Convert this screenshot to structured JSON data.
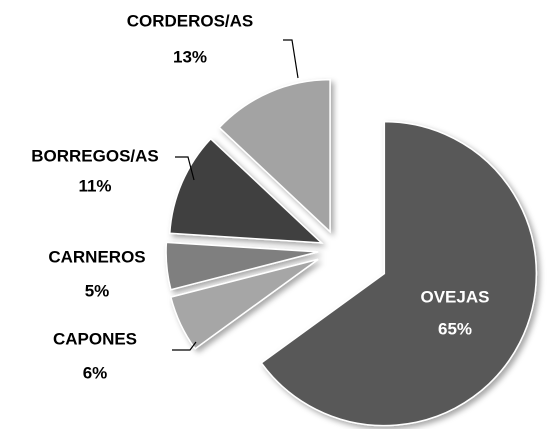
{
  "chart_data": {
    "type": "pie",
    "categories": [
      "OVEJAS",
      "CAPONES",
      "CARNEROS",
      "BORREGOS/AS",
      "CORDEROS/AS"
    ],
    "values": [
      65,
      6,
      5,
      11,
      13
    ],
    "value_labels": [
      "65%",
      "6%",
      "5%",
      "11%",
      "13%"
    ],
    "colors": [
      "#595959",
      "#a6a6a6",
      "#7f7f7f",
      "#404040",
      "#a3a3a3"
    ]
  }
}
